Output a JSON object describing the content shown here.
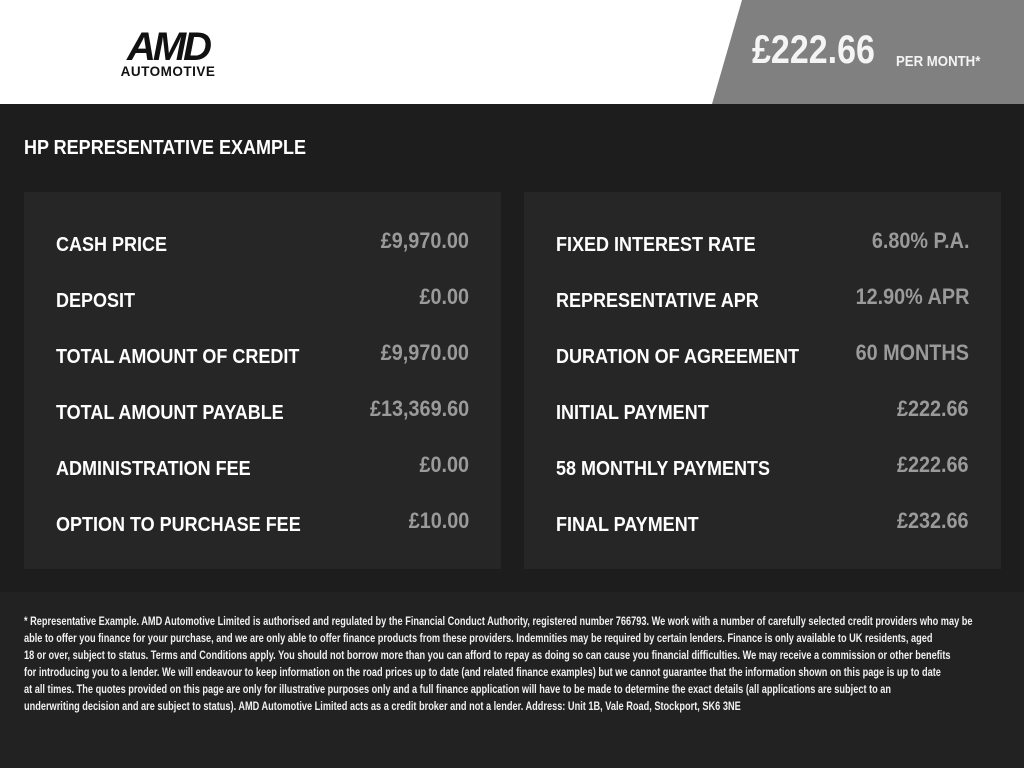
{
  "header": {
    "logo_text": "AMD AUTOMOTIVE",
    "price": "£222.66",
    "per_month": "PER MONTH*"
  },
  "section_title": "HP REPRESENTATIVE EXAMPLE",
  "left_rows": [
    {
      "label": "CASH PRICE",
      "value": "£9,970.00"
    },
    {
      "label": "DEPOSIT",
      "value": "£0.00"
    },
    {
      "label": "TOTAL AMOUNT OF CREDIT",
      "value": "£9,970.00"
    },
    {
      "label": "TOTAL AMOUNT PAYABLE",
      "value": "£13,369.60"
    },
    {
      "label": "ADMINISTRATION FEE",
      "value": "£0.00"
    },
    {
      "label": "OPTION TO PURCHASE FEE",
      "value": "£10.00"
    }
  ],
  "right_rows": [
    {
      "label": "FIXED INTEREST RATE",
      "value": "6.80% P.A."
    },
    {
      "label": "REPRESENTATIVE APR",
      "value": "12.90% APR"
    },
    {
      "label": "DURATION OF AGREEMENT",
      "value": "60 MONTHS"
    },
    {
      "label": "INITIAL PAYMENT",
      "value": "£222.66"
    },
    {
      "label": "58 MONTHLY PAYMENTS",
      "value": "£222.66"
    },
    {
      "label": "FINAL PAYMENT",
      "value": "£232.66"
    }
  ],
  "footer_lines": [
    "* Representative Example. AMD Automotive Limited is authorised and regulated by the Financial Conduct Authority, registered number 766793. We work with a number of carefully selected credit providers who may be",
    "able to offer you finance for your purchase, and we are only able to offer finance products from these providers. Indemnities may be required by certain lenders. Finance is only available to UK residents, aged",
    "18 or over, subject to status. Terms and Conditions apply. You should not borrow more than you can afford to repay as doing so can cause you financial difficulties. We may receive a commission or other benefits",
    "for introducing you to a lender. We will endeavour to keep information on the road prices up to date (and related finance examples) but we cannot guarantee that the information shown on this page is up to date",
    "at all times. The quotes provided on this page are only for illustrative purposes only and a full finance application will have to be made to determine the exact details (all applications are subject to an",
    "underwriting decision and are subject to status). AMD Automotive Limited acts as a credit broker and not a lender. Address: Unit 1B, Vale Road, Stockport, SK6 3NE"
  ]
}
